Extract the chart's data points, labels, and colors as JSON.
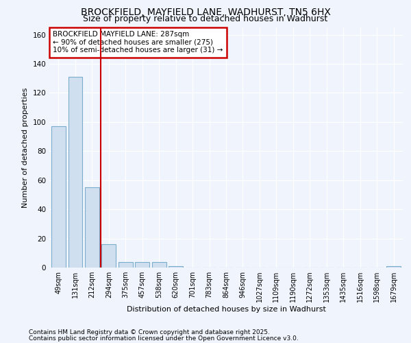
{
  "title": "BROCKFIELD, MAYFIELD LANE, WADHURST, TN5 6HX",
  "subtitle": "Size of property relative to detached houses in Wadhurst",
  "xlabel": "Distribution of detached houses by size in Wadhurst",
  "ylabel": "Number of detached properties",
  "categories": [
    "49sqm",
    "131sqm",
    "212sqm",
    "294sqm",
    "375sqm",
    "457sqm",
    "538sqm",
    "620sqm",
    "701sqm",
    "783sqm",
    "864sqm",
    "946sqm",
    "1027sqm",
    "1109sqm",
    "1190sqm",
    "1272sqm",
    "1353sqm",
    "1435sqm",
    "1516sqm",
    "1598sqm",
    "1679sqm"
  ],
  "values": [
    97,
    131,
    55,
    16,
    4,
    4,
    4,
    1,
    0,
    0,
    0,
    0,
    0,
    0,
    0,
    0,
    0,
    0,
    0,
    0,
    1
  ],
  "bar_color": "#d0dff0",
  "bar_edge_color": "#7aaccc",
  "vline_x": 2.5,
  "vline_color": "#cc0000",
  "box_text_line1": "BROCKFIELD MAYFIELD LANE: 287sqm",
  "box_text_line2": "← 90% of detached houses are smaller (275)",
  "box_text_line3": "10% of semi-detached houses are larger (31) →",
  "box_color": "#cc0000",
  "box_bg": "#ffffff",
  "ylim": [
    0,
    165
  ],
  "yticks": [
    0,
    20,
    40,
    60,
    80,
    100,
    120,
    140,
    160
  ],
  "footnote1": "Contains HM Land Registry data © Crown copyright and database right 2025.",
  "footnote2": "Contains public sector information licensed under the Open Government Licence v3.0.",
  "bg_color": "#f0f4fc",
  "grid_color": "#ffffff",
  "title_fontsize": 10,
  "subtitle_fontsize": 9,
  "tick_fontsize": 7,
  "axis_label_fontsize": 8,
  "footnote_fontsize": 6.5,
  "annotation_fontsize": 7.5
}
